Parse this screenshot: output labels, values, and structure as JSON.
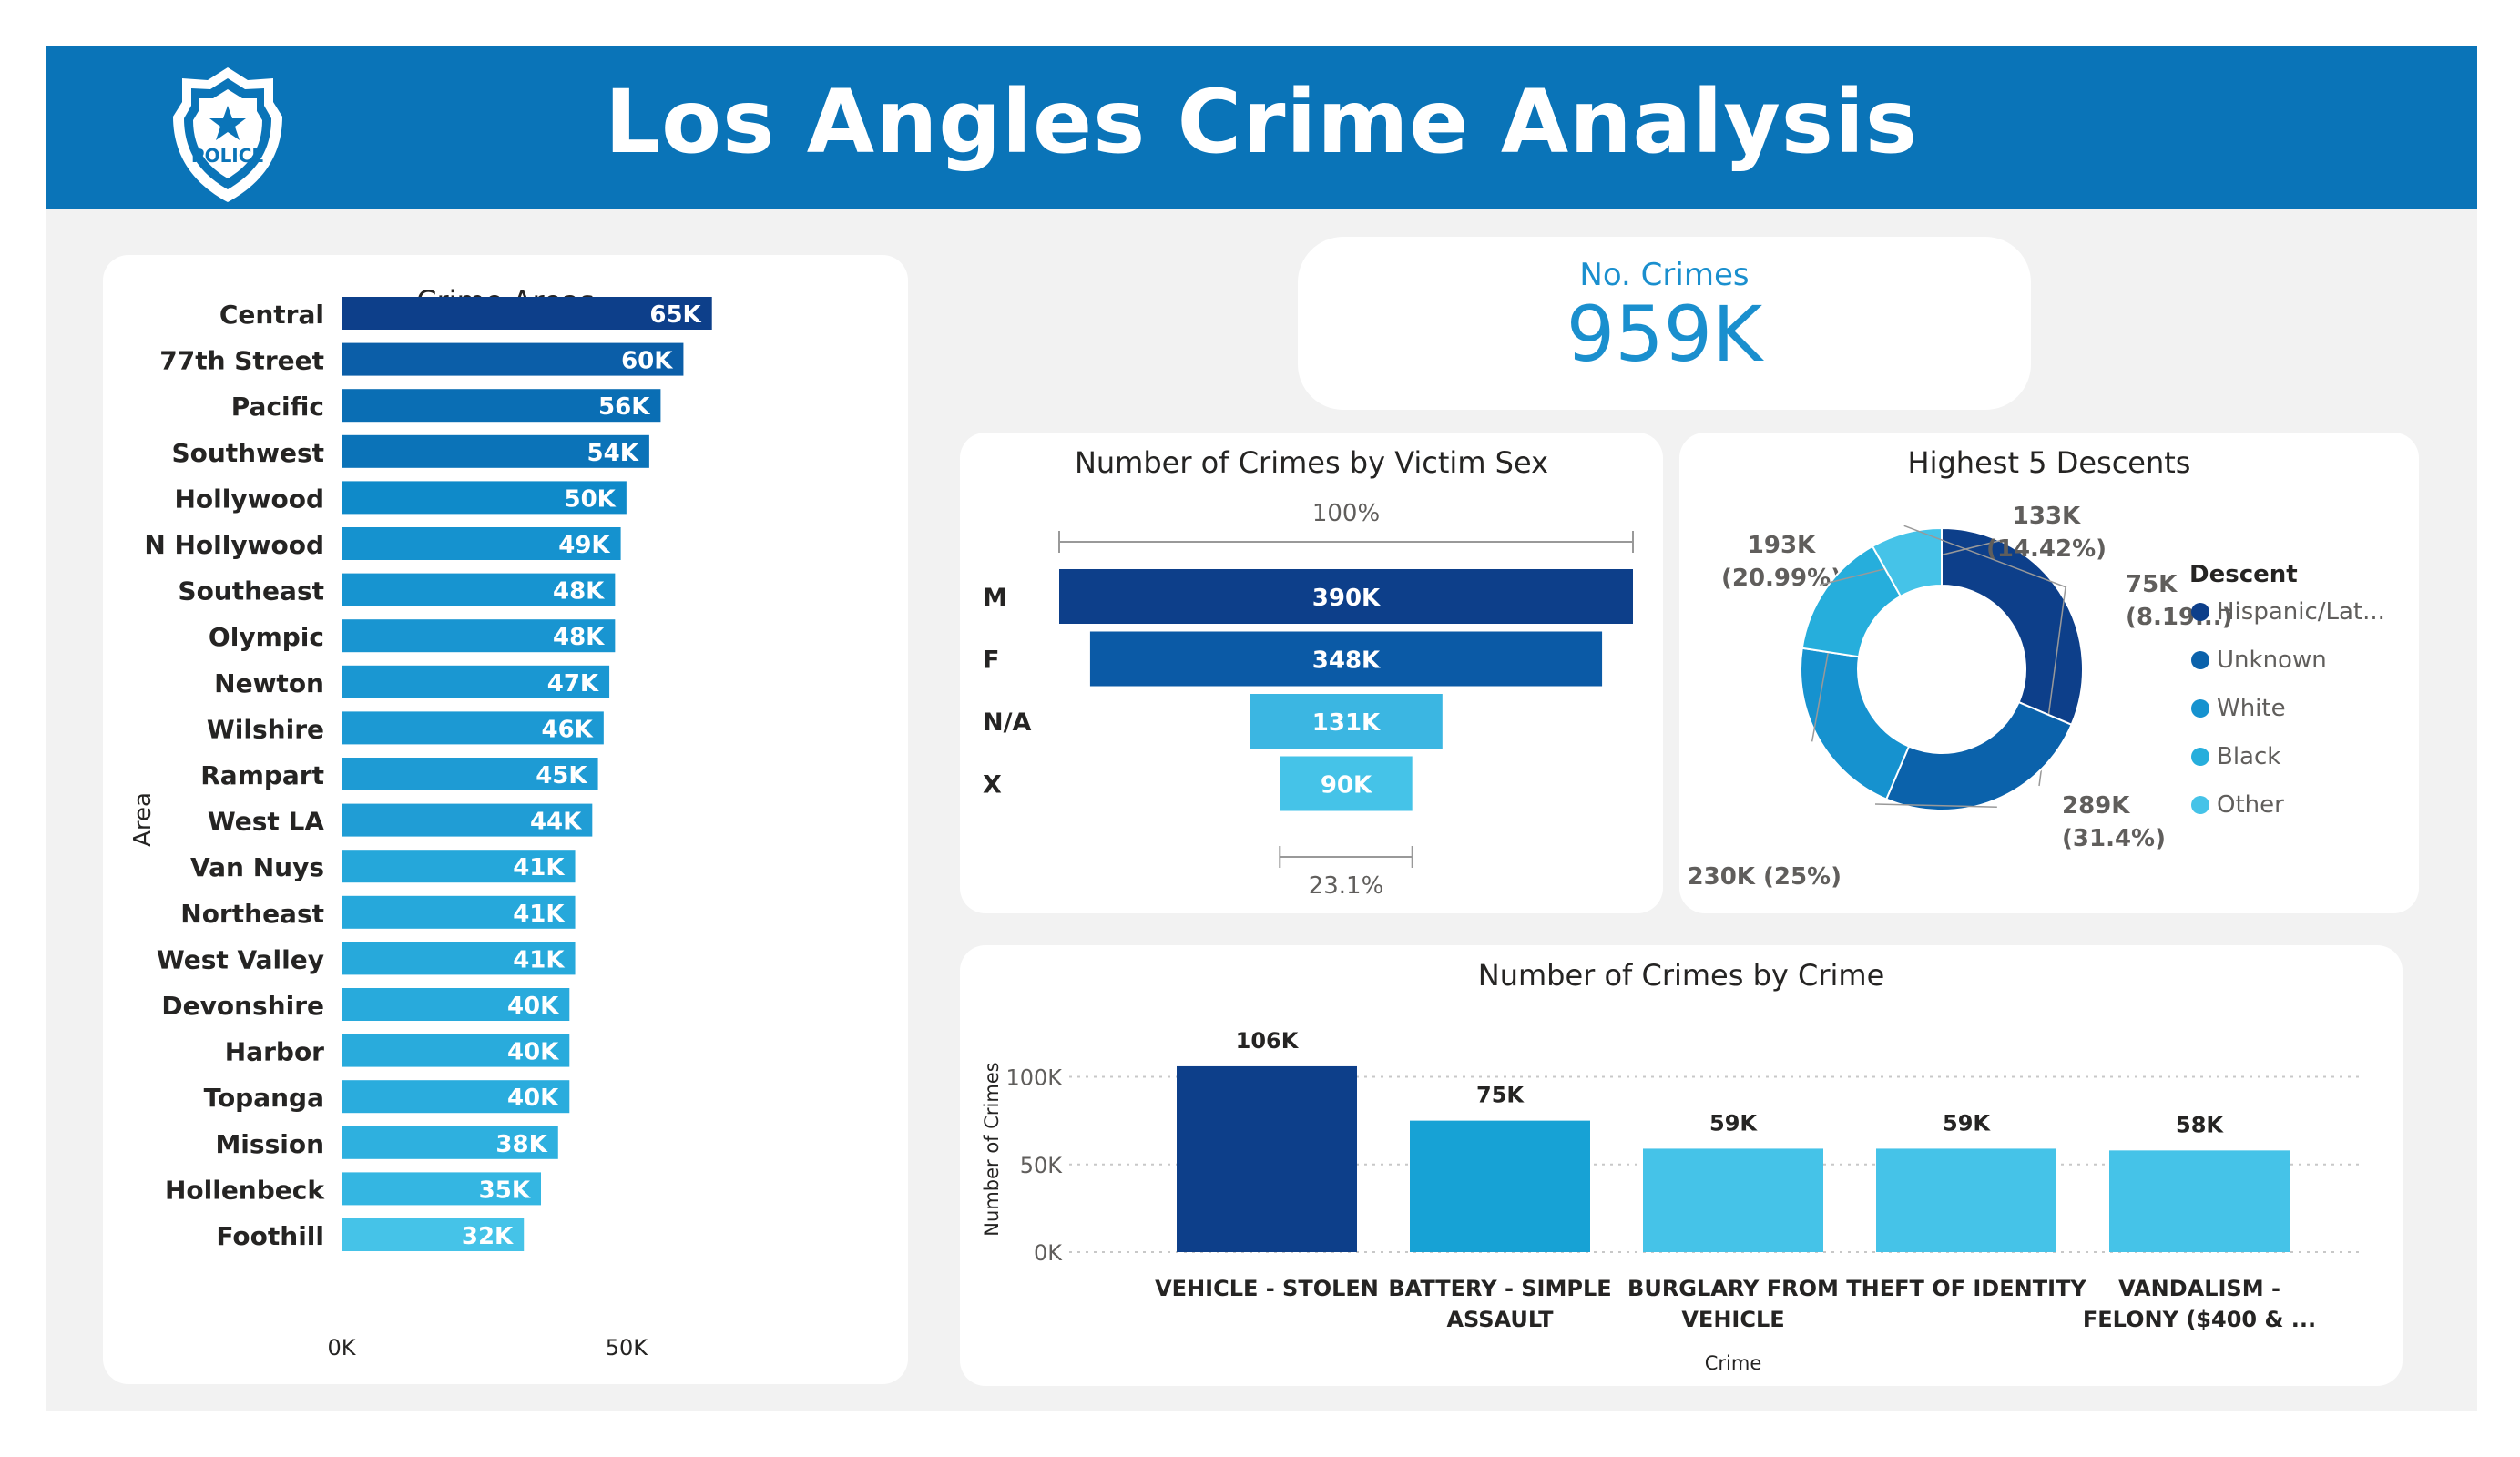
{
  "header": {
    "title": "Los Angles Crime Analysis",
    "badge_text": "POLICE"
  },
  "kpi": {
    "label": "No. Crimes",
    "value": "959K"
  },
  "areas": {
    "title": "Crime Areas",
    "ylabel": "Area",
    "chart_data": {
      "type": "bar",
      "orientation": "horizontal",
      "categories": [
        "Central",
        "77th Street",
        "Pacific",
        "Southwest",
        "Hollywood",
        "N Hollywood",
        "Southeast",
        "Olympic",
        "Newton",
        "Wilshire",
        "Rampart",
        "West LA",
        "Van Nuys",
        "Northeast",
        "West Valley",
        "Devonshire",
        "Harbor",
        "Topanga",
        "Mission",
        "Hollenbeck",
        "Foothill"
      ],
      "values": [
        65,
        60,
        56,
        54,
        50,
        49,
        48,
        48,
        47,
        46,
        45,
        44,
        41,
        41,
        41,
        40,
        40,
        40,
        38,
        35,
        32
      ],
      "labels": [
        "65K",
        "60K",
        "56K",
        "54K",
        "50K",
        "49K",
        "48K",
        "48K",
        "47K",
        "46K",
        "45K",
        "44K",
        "41K",
        "41K",
        "41K",
        "40K",
        "40K",
        "40K",
        "38K",
        "35K",
        "32K"
      ],
      "xlim": [
        0,
        70
      ],
      "xticks": [
        0,
        50
      ],
      "xtick_labels": [
        "0K",
        "50K"
      ],
      "ylabel": "Area"
    }
  },
  "funnel": {
    "title": "Number of Crimes by Victim Sex",
    "top_pct": "100%",
    "bottom_pct": "23.1%",
    "chart_data": {
      "type": "funnel",
      "categories": [
        "M",
        "F",
        "N/A",
        "X"
      ],
      "values": [
        390,
        348,
        131,
        90
      ],
      "labels": [
        "390K",
        "348K",
        "131K",
        "90K"
      ]
    }
  },
  "donut": {
    "title": "Highest 5 Descents",
    "legend_title": "Descent",
    "chart_data": {
      "type": "pie",
      "donut": true,
      "categories": [
        "Hispanic/Lat...",
        "Unknown",
        "White",
        "Black",
        "Other"
      ],
      "values": [
        289,
        230,
        193,
        133,
        75
      ],
      "labels": [
        [
          "289K",
          "(31.4%)"
        ],
        [
          "230K (25%)"
        ],
        [
          "193K",
          "(20.99%)"
        ],
        [
          "133K",
          "(14.42%)"
        ],
        [
          "75K",
          "(8.19...)"
        ]
      ],
      "legend": "right"
    }
  },
  "crimes": {
    "title": "Number of Crimes by Crime",
    "ylabel": "Number of Crimes",
    "xlabel": "Crime",
    "chart_data": {
      "type": "bar",
      "categories": [
        [
          "VEHICLE - STOLEN"
        ],
        [
          "BATTERY - SIMPLE",
          "ASSAULT"
        ],
        [
          "BURGLARY FROM",
          "VEHICLE"
        ],
        [
          "THEFT OF IDENTITY"
        ],
        [
          "VANDALISM -",
          "FELONY ($400 & ..."
        ]
      ],
      "values": [
        106,
        75,
        59,
        59,
        58
      ],
      "labels": [
        "106K",
        "75K",
        "59K",
        "59K",
        "58K"
      ],
      "ylim": [
        0,
        120
      ],
      "yticks": [
        0,
        50,
        100
      ],
      "ytick_labels": [
        "0K",
        "50K",
        "100K"
      ],
      "grid": true,
      "xlabel": "Crime",
      "ylabel": "Number of Crimes"
    }
  },
  "colors": {
    "header": "#0a74b8",
    "area_bars": [
      "#0d3f8a",
      "#0b5ea8",
      "#0a6eb4",
      "#0b73b8",
      "#0f8ac9",
      "#1592cf",
      "#1794d0",
      "#1995d1",
      "#1a97d2",
      "#1c99d3",
      "#1e9bd4",
      "#209dd5",
      "#25a7da",
      "#26a8db",
      "#27a9db",
      "#28aadc",
      "#29abdc",
      "#2aacdd",
      "#2eb0df",
      "#34b6e2",
      "#45c3e8"
    ],
    "funnel": [
      "#0d3f8a",
      "#0b5aa6",
      "#3bb6e2",
      "#45c3e8"
    ],
    "donut": [
      "#0d3f8a",
      "#0b62ab",
      "#1692cf",
      "#26aedc",
      "#45c3e8"
    ],
    "crime_bars": [
      "#0d3f8a",
      "#17a2d5",
      "#45c3e8",
      "#45c3e8",
      "#45c3e8"
    ]
  }
}
